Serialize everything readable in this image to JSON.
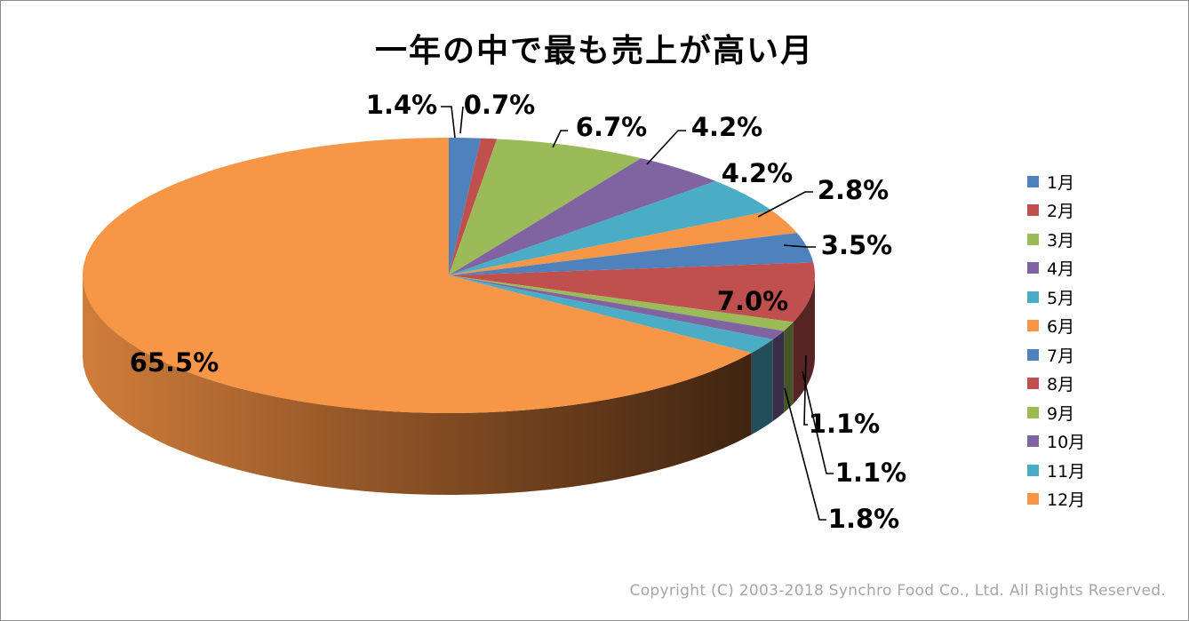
{
  "chart_data": {
    "type": "pie",
    "title": "一年の中で最も売上が高い月",
    "categories": [
      "1月",
      "2月",
      "3月",
      "4月",
      "5月",
      "6月",
      "7月",
      "8月",
      "9月",
      "10月",
      "11月",
      "12月"
    ],
    "values": [
      1.4,
      0.7,
      6.7,
      4.2,
      4.2,
      2.8,
      3.5,
      7.0,
      1.1,
      1.1,
      1.8,
      65.5
    ],
    "labels": [
      "1.4%",
      "0.7%",
      "6.7%",
      "4.2%",
      "4.2%",
      "2.8%",
      "3.5%",
      "7.0%",
      "1.1%",
      "1.1%",
      "1.8%",
      "65.5%"
    ],
    "colors": [
      "#4f81bd",
      "#c0504d",
      "#9bbb59",
      "#8064a2",
      "#4bacc6",
      "#f79646",
      "#4f81bd",
      "#c0504d",
      "#9bbb59",
      "#8064a2",
      "#4bacc6",
      "#f79646"
    ],
    "style": "3d",
    "legend_position": "right"
  },
  "footer": {
    "copyright": "Copyright (C) 2003-2018  Synchro Food Co., Ltd. All Rights Reserved."
  }
}
